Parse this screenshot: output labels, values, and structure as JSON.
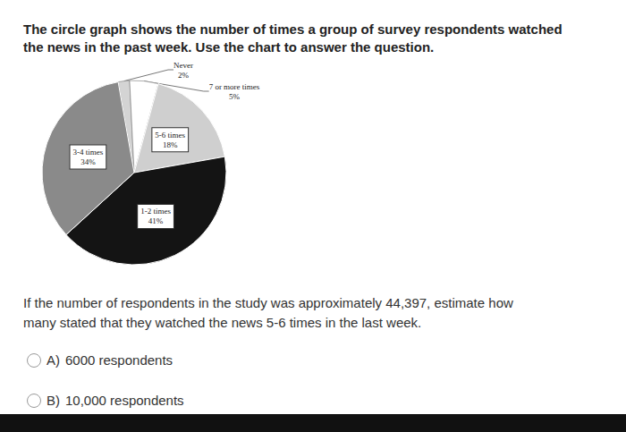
{
  "header": {
    "lines": [
      "The circle graph shows the number of times a group of survey respondents watched",
      "the news in the past week. Use the chart to answer the question."
    ]
  },
  "chart_data": {
    "type": "pie",
    "categories": [
      "Never",
      "7 or more times",
      "5-6 times",
      "1-2 times",
      "3-4 times"
    ],
    "values": [
      2,
      5,
      18,
      41,
      34
    ],
    "value_labels": [
      "2%",
      "5%",
      "18%",
      "41%",
      "34%"
    ],
    "colors": [
      "#d4d4d4",
      "#ffffff",
      "#cfcfcf",
      "#141414",
      "#8a8a8a"
    ],
    "data_labels": true
  },
  "question": {
    "lines": [
      "If the number of respondents in the study was approximately 44,397, estimate how",
      "many stated that they watched the news 5-6 times in the last week."
    ]
  },
  "options": [
    {
      "letter": "A)",
      "text": "6000 respondents"
    },
    {
      "letter": "B)",
      "text": "10,000 respondents"
    }
  ]
}
